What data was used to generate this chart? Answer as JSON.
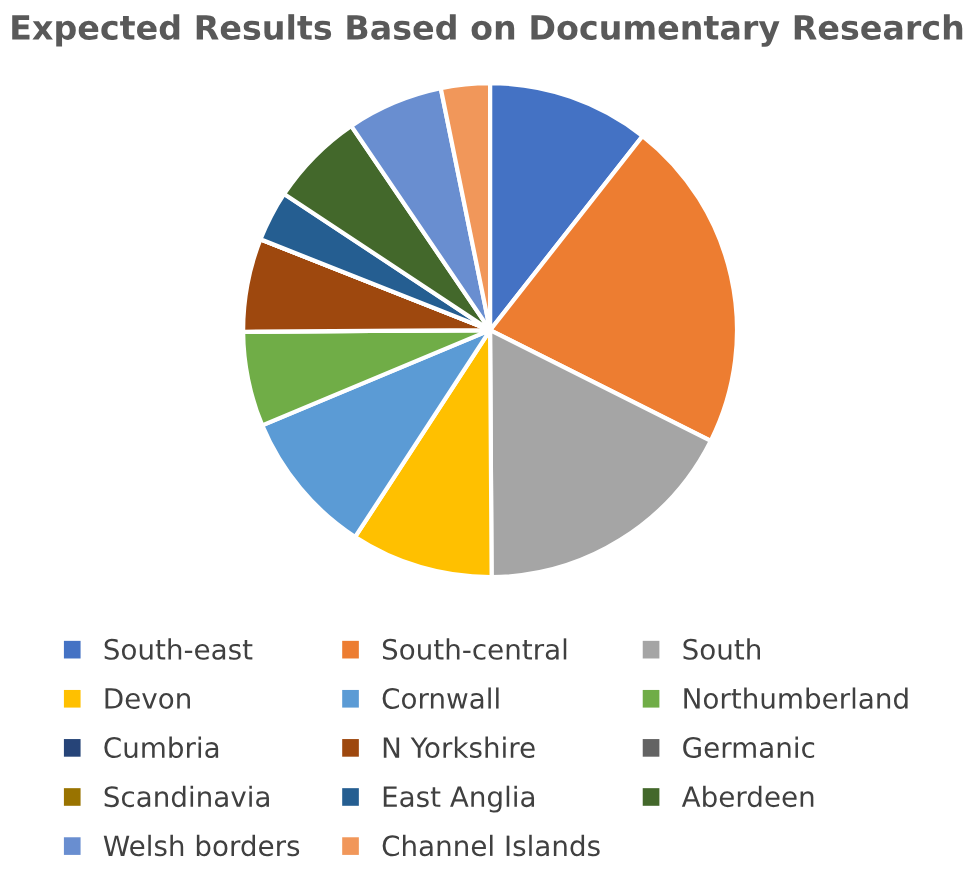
{
  "chart_data": {
    "type": "pie",
    "title": "Expected Results Based on Documentary Research",
    "categories": [
      "South-east",
      "South-central",
      "South",
      "Devon",
      "Cornwall",
      "Northumberland",
      "Cumbria",
      "N Yorkshire",
      "Germanic",
      "Scandinavia",
      "East Anglia",
      "Aberdeen",
      "Welsh borders",
      "Channel Islands"
    ],
    "values": [
      10.6,
      21.8,
      17.5,
      9.3,
      9.5,
      6.2,
      0,
      6.1,
      0,
      0,
      3.3,
      6.2,
      6.3,
      3.2
    ],
    "colors": [
      "#4472c4",
      "#ed7d31",
      "#a5a5a5",
      "#ffc000",
      "#5b9bd5",
      "#70ad47",
      "#264478",
      "#9e480e",
      "#636363",
      "#997300",
      "#255e91",
      "#43682b",
      "#698ed0",
      "#f1975a"
    ],
    "legend": "bottom"
  }
}
